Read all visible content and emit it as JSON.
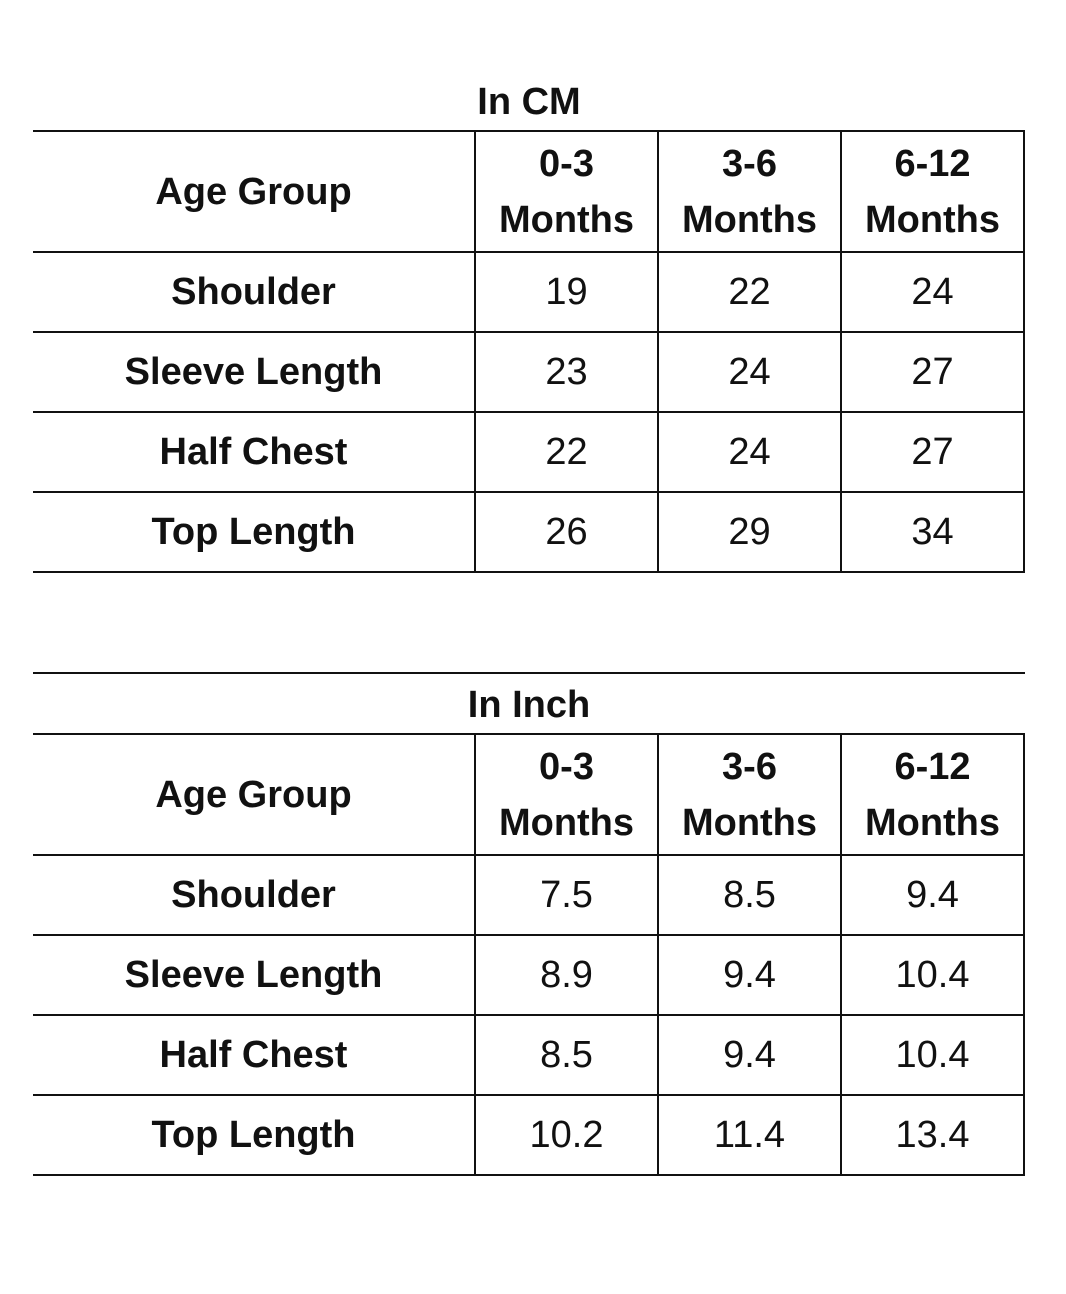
{
  "tables": [
    {
      "title": "In CM",
      "header_label": "Age Group",
      "columns": [
        {
          "line1": "0-3",
          "line2": "Months"
        },
        {
          "line1": "3-6",
          "line2": "Months"
        },
        {
          "line1": "6-12",
          "line2": "Months"
        }
      ],
      "rows": [
        {
          "label": "Shoulder",
          "values": [
            "19",
            "22",
            "24"
          ]
        },
        {
          "label": "Sleeve Length",
          "values": [
            "23",
            "24",
            "27"
          ]
        },
        {
          "label": "Half Chest",
          "values": [
            "22",
            "24",
            "27"
          ]
        },
        {
          "label": "Top Length",
          "values": [
            "26",
            "29",
            "34"
          ]
        }
      ]
    },
    {
      "title": "In Inch",
      "header_label": "Age Group",
      "columns": [
        {
          "line1": "0-3",
          "line2": "Months"
        },
        {
          "line1": "3-6",
          "line2": "Months"
        },
        {
          "line1": "6-12",
          "line2": "Months"
        }
      ],
      "rows": [
        {
          "label": "Shoulder",
          "values": [
            "7.5",
            "8.5",
            "9.4"
          ]
        },
        {
          "label": "Sleeve Length",
          "values": [
            "8.9",
            "9.4",
            "10.4"
          ]
        },
        {
          "label": "Half Chest",
          "values": [
            "8.5",
            "9.4",
            "10.4"
          ]
        },
        {
          "label": "Top Length",
          "values": [
            "10.2",
            "11.4",
            "13.4"
          ]
        }
      ]
    }
  ]
}
